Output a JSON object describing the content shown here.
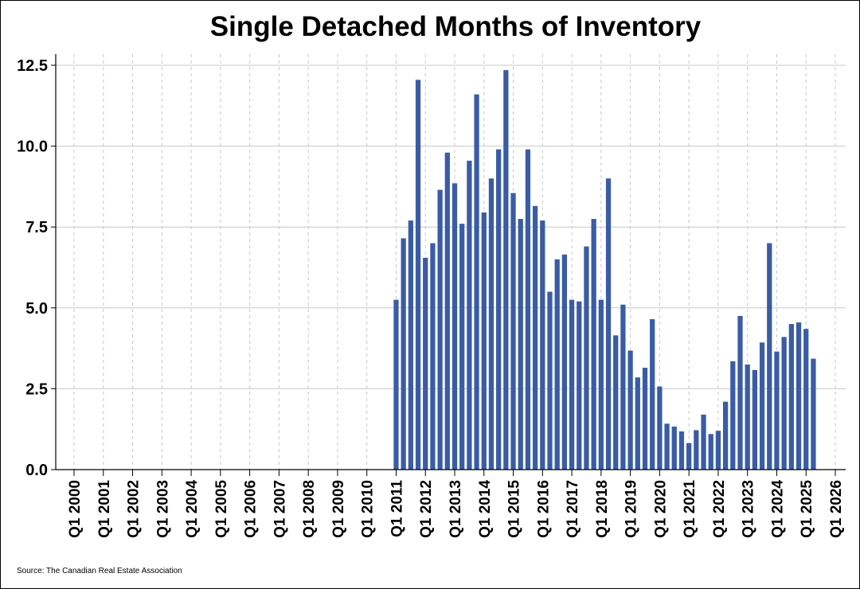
{
  "chart_data": {
    "type": "bar",
    "title": "Single Detached Months of Inventory",
    "source": "Source: The Canadian Real Estate Association",
    "ylim": [
      0,
      12.5
    ],
    "y_ticks": [
      "0.0",
      "2.5",
      "5.0",
      "7.5",
      "10.0",
      "12.5"
    ],
    "x_ticks": [
      "Q1 2000",
      "Q1 2001",
      "Q1 2002",
      "Q1 2003",
      "Q1 2004",
      "Q1 2005",
      "Q1 2006",
      "Q1 2007",
      "Q1 2008",
      "Q1 2009",
      "Q1 2010",
      "Q1 2011",
      "Q1 2012",
      "Q1 2013",
      "Q1 2014",
      "Q1 2015",
      "Q1 2016",
      "Q1 2017",
      "Q1 2018",
      "Q1 2019",
      "Q1 2020",
      "Q1 2021",
      "Q1 2022",
      "Q1 2023",
      "Q1 2024",
      "Q1 2025",
      "Q1 2026"
    ],
    "x_range": [
      "2000 Q1",
      "2026 Q1"
    ],
    "grid": {
      "horizontal": true,
      "vertical_dashed": true
    },
    "bar_color": "#3a5ca5",
    "series": [
      {
        "x": [
          "2011 Q1",
          "2011 Q2",
          "2011 Q3",
          "2011 Q4",
          "2012 Q1",
          "2012 Q2",
          "2012 Q3",
          "2012 Q4",
          "2013 Q1",
          "2013 Q2",
          "2013 Q3",
          "2013 Q4",
          "2014 Q1",
          "2014 Q2",
          "2014 Q3",
          "2014 Q4",
          "2015 Q1",
          "2015 Q2",
          "2015 Q3",
          "2015 Q4",
          "2016 Q1",
          "2016 Q2",
          "2016 Q3",
          "2016 Q4",
          "2017 Q1",
          "2017 Q2",
          "2017 Q3",
          "2017 Q4",
          "2018 Q1",
          "2018 Q2",
          "2018 Q3",
          "2018 Q4",
          "2019 Q1",
          "2019 Q2",
          "2019 Q3",
          "2019 Q4",
          "2020 Q1",
          "2020 Q2",
          "2020 Q3",
          "2020 Q4",
          "2021 Q1",
          "2021 Q2",
          "2021 Q3",
          "2021 Q4",
          "2022 Q1",
          "2022 Q2",
          "2022 Q3",
          "2022 Q4",
          "2023 Q1",
          "2023 Q2",
          "2023 Q3",
          "2023 Q4",
          "2024 Q1",
          "2024 Q2",
          "2024 Q3",
          "2024 Q4",
          "2025 Q1",
          "2025 Q2"
        ],
        "values": [
          5.25,
          7.15,
          7.7,
          12.05,
          6.55,
          7.0,
          8.65,
          9.8,
          8.85,
          7.6,
          9.55,
          11.6,
          7.95,
          9.0,
          9.9,
          12.35,
          8.55,
          7.75,
          9.9,
          8.15,
          7.7,
          5.5,
          6.5,
          6.65,
          5.25,
          5.2,
          6.9,
          7.75,
          5.25,
          9.0,
          4.15,
          5.1,
          3.68,
          2.85,
          3.15,
          4.65,
          2.57,
          1.42,
          1.33,
          1.18,
          0.82,
          1.22,
          1.7,
          1.1,
          1.2,
          2.1,
          3.35,
          4.75,
          3.25,
          3.08,
          3.93,
          7.0,
          3.65,
          4.1,
          4.5,
          4.55,
          4.35,
          3.43
        ]
      }
    ]
  }
}
